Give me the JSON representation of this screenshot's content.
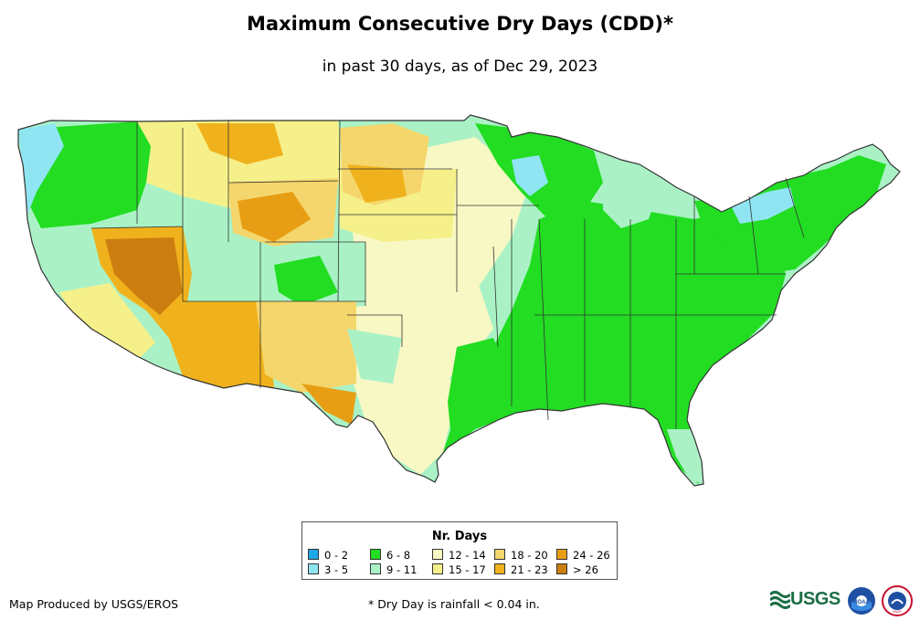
{
  "header": {
    "title": "Maximum Consecutive Dry Days (CDD)*",
    "subtitle": "in past 30 days, as of Dec 29, 2023"
  },
  "legend": {
    "title": "Nr. Days",
    "items": [
      {
        "label": "0 - 2",
        "color": "#1ea7e8"
      },
      {
        "label": "3 - 5",
        "color": "#8fe6f2"
      },
      {
        "label": "6 - 8",
        "color": "#22dd22"
      },
      {
        "label": "9 - 11",
        "color": "#aaf2c6"
      },
      {
        "label": "12 - 14",
        "color": "#f8f8c4"
      },
      {
        "label": "15 - 17",
        "color": "#f6f08a"
      },
      {
        "label": "18 - 20",
        "color": "#f5d66c"
      },
      {
        "label": "21 - 23",
        "color": "#f0b21c"
      },
      {
        "label": "24 - 26",
        "color": "#e89e14"
      },
      {
        "label": "> 26",
        "color": "#cc7e10"
      }
    ]
  },
  "footer": {
    "credit": "Map Produced by USGS/EROS",
    "footnote": "* Dry Day is rainfall < 0.04 in.",
    "usgs_logo": "USGS",
    "noaa_logo": "NOAA",
    "nws_logo": "NWS"
  },
  "map": {
    "region": "Contiguous United States",
    "regions": [
      {
        "name": "southwest-desert",
        "class": "> 26"
      },
      {
        "name": "arizona-new-mexico",
        "class": "21 - 23"
      },
      {
        "name": "southern-plains",
        "class": "12 - 14"
      },
      {
        "name": "southeast",
        "class": "6 - 8"
      },
      {
        "name": "northeast",
        "class": "6 - 8"
      },
      {
        "name": "pacific-northwest-coast",
        "class": "3 - 5"
      },
      {
        "name": "great-lakes-snowbelt",
        "class": "3 - 5"
      }
    ]
  }
}
